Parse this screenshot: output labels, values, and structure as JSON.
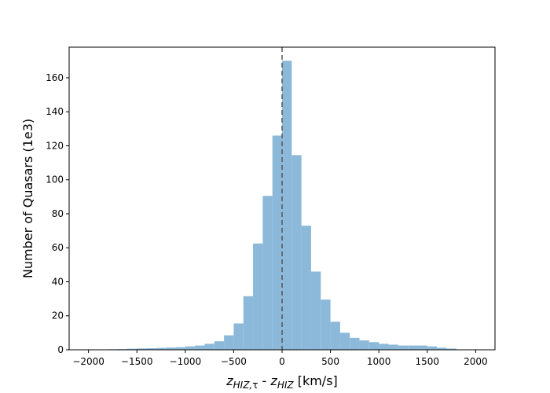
{
  "chart_data": {
    "type": "bar",
    "bin_width": 100,
    "bins": [
      {
        "x0": -1800,
        "value": 0.3
      },
      {
        "x0": -1700,
        "value": 0.4
      },
      {
        "x0": -1600,
        "value": 0.6
      },
      {
        "x0": -1500,
        "value": 0.8
      },
      {
        "x0": -1400,
        "value": 0.9
      },
      {
        "x0": -1300,
        "value": 1.1
      },
      {
        "x0": -1200,
        "value": 1.3
      },
      {
        "x0": -1100,
        "value": 1.5
      },
      {
        "x0": -1000,
        "value": 2.0
      },
      {
        "x0": -900,
        "value": 2.5
      },
      {
        "x0": -800,
        "value": 3.5
      },
      {
        "x0": -700,
        "value": 5.0
      },
      {
        "x0": -600,
        "value": 8.5
      },
      {
        "x0": -500,
        "value": 15.5
      },
      {
        "x0": -400,
        "value": 31.5
      },
      {
        "x0": -300,
        "value": 62.5
      },
      {
        "x0": -200,
        "value": 90.5
      },
      {
        "x0": -100,
        "value": 126
      },
      {
        "x0": 0,
        "value": 170
      },
      {
        "x0": 100,
        "value": 114.5
      },
      {
        "x0": 200,
        "value": 73
      },
      {
        "x0": 300,
        "value": 46
      },
      {
        "x0": 400,
        "value": 29.5
      },
      {
        "x0": 500,
        "value": 16.5
      },
      {
        "x0": 600,
        "value": 10
      },
      {
        "x0": 700,
        "value": 7
      },
      {
        "x0": 800,
        "value": 5.5
      },
      {
        "x0": 900,
        "value": 4.5
      },
      {
        "x0": 1000,
        "value": 3.5
      },
      {
        "x0": 1100,
        "value": 3
      },
      {
        "x0": 1200,
        "value": 2.5
      },
      {
        "x0": 1300,
        "value": 2.5
      },
      {
        "x0": 1400,
        "value": 2.5
      },
      {
        "x0": 1500,
        "value": 2
      },
      {
        "x0": 1600,
        "value": 1.2
      },
      {
        "x0": 1700,
        "value": 0.7
      }
    ],
    "xlim": [
      -2200,
      2200
    ],
    "ylim": [
      0,
      178
    ],
    "xticks": [
      -2000,
      -1500,
      -1000,
      -500,
      0,
      500,
      1000,
      1500,
      2000
    ],
    "yticks": [
      0,
      20,
      40,
      60,
      80,
      100,
      120,
      140,
      160
    ],
    "xlabel": {
      "main": "z",
      "sub1": "HIZ,",
      "tau": "τ",
      "dash": " - ",
      "main2": "z",
      "sub2": "HIZ",
      "units": " [km/s]"
    },
    "ylabel": "Number of Quasars (1e3)",
    "vline": {
      "x": 0,
      "style": "dashed"
    },
    "bar_color": "#8cb9d9",
    "vline_color": "#555555",
    "grid": false
  }
}
